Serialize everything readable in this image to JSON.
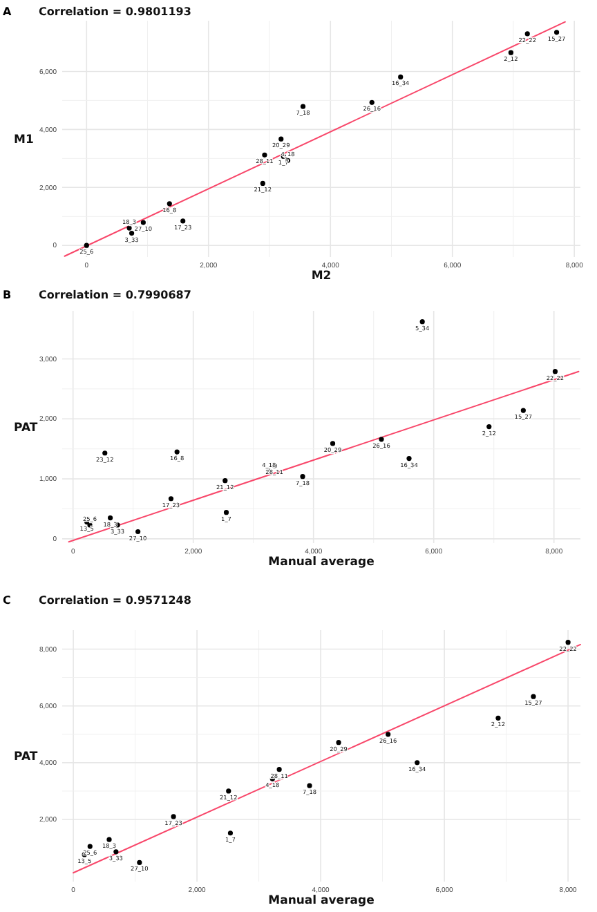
{
  "chart_data": [
    {
      "type": "scatter",
      "title": "Correlation = 0.9801193",
      "annotations": [
        "A"
      ],
      "xlabel": "M2",
      "ylabel": "M1",
      "xlim": [
        -400,
        8100
      ],
      "ylim": [
        -400,
        7750
      ],
      "xticks": [
        {
          "value": 0,
          "label": "0"
        },
        {
          "value": 2000,
          "label": "2,000"
        },
        {
          "value": 4000,
          "label": "4,000"
        },
        {
          "value": 6000,
          "label": "6,000"
        },
        {
          "value": 8000,
          "label": "8,000"
        }
      ],
      "yticks": [
        0,
        {
          "value": 2000,
          "label": "2,000"
        },
        {
          "value": 4000,
          "label": "4,000"
        },
        {
          "value": 6000,
          "label": "6,000"
        }
      ],
      "grid": true,
      "marker": "circle",
      "series": [
        {
          "color": "#000000",
          "x": [
            7230,
            7710,
            6960,
            5150,
            4680,
            3550,
            3190,
            2920,
            3230,
            3300,
            2890,
            1360,
            1580,
            930,
            700,
            740,
            0
          ],
          "values": [
            7300,
            7350,
            6650,
            5810,
            4930,
            4790,
            3670,
            3120,
            3070,
            2930,
            2140,
            1440,
            840,
            790,
            600,
            420,
            0
          ],
          "value_labels": [
            "22_22",
            "15_27",
            "2_12",
            "16_34",
            "26_16",
            "7_18",
            "20_29",
            "28_11",
            "1_7",
            "4_18",
            "21_12",
            "16_8",
            "17_23",
            "27_10",
            "18_3",
            "3_33",
            "25_6"
          ]
        },
        {
          "type": "line",
          "marker": "none",
          "color": "#f8476a",
          "x": [
            -360,
            7850
          ],
          "values": [
            -370,
            7710
          ]
        }
      ]
    },
    {
      "type": "scatter",
      "title": "Correlation = 0.7990687",
      "annotations": [
        "B"
      ],
      "xlabel": "Manual average",
      "ylabel": "PAT",
      "xlim": [
        -180,
        8440
      ],
      "ylim": [
        -70,
        3800
      ],
      "xticks": [
        {
          "value": 0,
          "label": "0"
        },
        {
          "value": 2000,
          "label": "2,000"
        },
        {
          "value": 4000,
          "label": "4,000"
        },
        {
          "value": 6000,
          "label": "6,000"
        },
        {
          "value": 8000,
          "label": "8,000"
        }
      ],
      "yticks": [
        0,
        {
          "value": 1000,
          "label": "1,000"
        },
        {
          "value": 2000,
          "label": "2,000"
        },
        {
          "value": 3000,
          "label": "3,000"
        }
      ],
      "grid": true,
      "marker": "circle",
      "series": [
        {
          "color": "#000000",
          "x": [
            5810,
            8020,
            7490,
            6920,
            4320,
            5130,
            5590,
            530,
            1730,
            3350,
            3260,
            3820,
            2530,
            1630,
            2550,
            620,
            230,
            280,
            740,
            1080
          ],
          "values": [
            3620,
            2790,
            2140,
            1870,
            1590,
            1660,
            1340,
            1430,
            1450,
            1220,
            1130,
            1040,
            970,
            670,
            440,
            350,
            280,
            230,
            230,
            120
          ],
          "value_labels": [
            "5_34",
            "22_22",
            "15_27",
            "2_12",
            "20_29",
            "26_16",
            "16_34",
            "23_12",
            "16_8",
            "28_11",
            "4_18",
            "7_18",
            "21_12",
            "17_23",
            "1_7",
            "18_3",
            "13_5",
            "25_6",
            "3_33",
            "27_10"
          ]
        },
        {
          "type": "line",
          "marker": "none",
          "color": "#f8476a",
          "x": [
            -70,
            8410
          ],
          "values": [
            -50,
            2790
          ]
        }
      ]
    },
    {
      "type": "scatter",
      "title": "Correlation = 0.9571248",
      "annotations": [
        "C"
      ],
      "xlabel": "Manual average",
      "ylabel": "PAT",
      "xlim": [
        -180,
        8200
      ],
      "ylim": [
        -190,
        8670
      ],
      "xticks": [
        {
          "value": 0,
          "label": "0"
        },
        {
          "value": 2000,
          "label": "2,000"
        },
        {
          "value": 4000,
          "label": "4,000"
        },
        {
          "value": 6000,
          "label": "6,000"
        },
        {
          "value": 8000,
          "label": "8,000"
        }
      ],
      "yticks": [
        {
          "value": 2000,
          "label": "2,000"
        },
        {
          "value": 4000,
          "label": "4,000"
        },
        {
          "value": 6000,
          "label": "6,000"
        },
        {
          "value": 8000,
          "label": "8,000"
        }
      ],
      "grid": true,
      "marker": "circle",
      "series": [
        {
          "color": "#000000",
          "x": [
            8000,
            7440,
            6870,
            4290,
            5090,
            5560,
            3330,
            3220,
            3820,
            2510,
            1620,
            2540,
            580,
            270,
            180,
            690,
            1070
          ],
          "values": [
            8240,
            6330,
            5570,
            4710,
            5000,
            4000,
            3760,
            3430,
            3190,
            3000,
            2100,
            1520,
            1290,
            1050,
            760,
            860,
            480
          ],
          "value_labels": [
            "22_22",
            "15_27",
            "2_12",
            "20_29",
            "26_16",
            "16_34",
            "28_11",
            "4_18",
            "7_18",
            "21_12",
            "17_23",
            "1_7",
            "18_3",
            "25_6",
            "13_5",
            "3_33",
            "27_10"
          ]
        },
        {
          "type": "line",
          "marker": "none",
          "color": "#f8476a",
          "x": [
            0,
            8200
          ],
          "values": [
            120,
            8160
          ]
        }
      ]
    }
  ]
}
